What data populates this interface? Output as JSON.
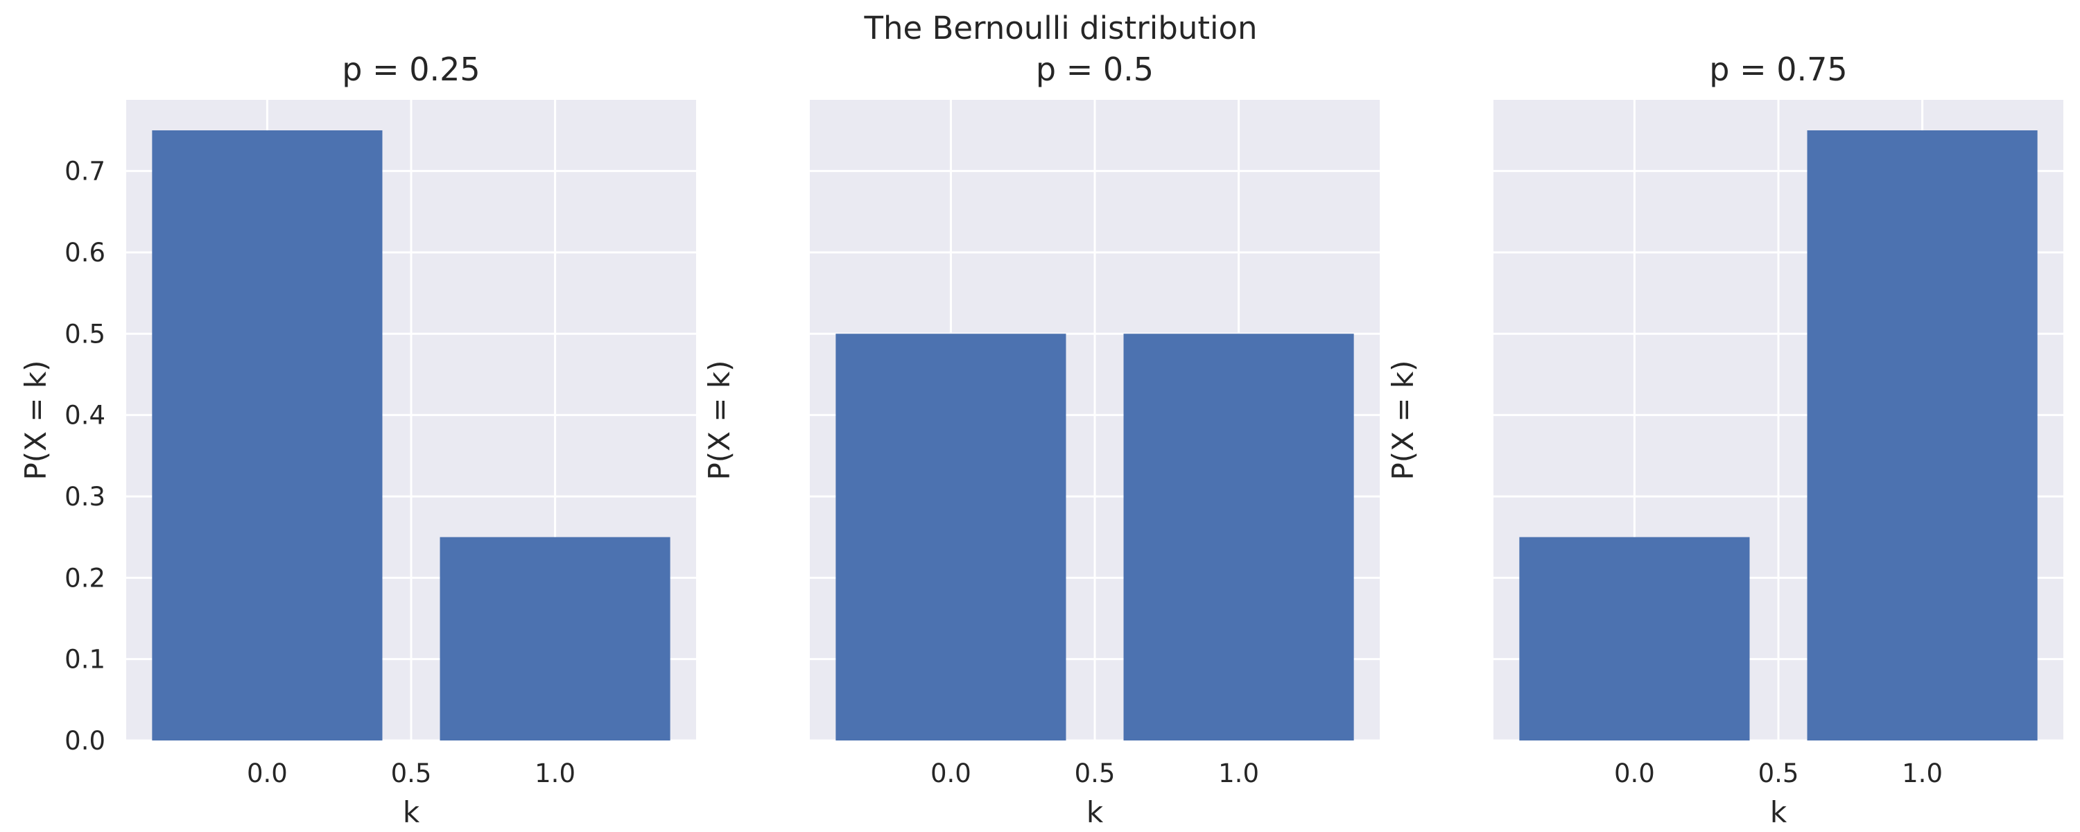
{
  "figure": {
    "title": "The Bernoulli distribution",
    "bar_color": "#4c72b0",
    "background_color": "#eaeaf2",
    "grid_color": "#ffffff"
  },
  "chart_data": [
    {
      "type": "bar",
      "title": "p = 0.25",
      "xlabel": "k",
      "ylabel": "P(X = k)",
      "x": [
        0.0,
        1.0
      ],
      "values": [
        0.75,
        0.25
      ],
      "bar_width": 0.8,
      "xlim": [
        -0.49,
        1.49
      ],
      "ylim": [
        0,
        0.7875
      ],
      "xticks": [
        "0.0",
        "0.5",
        "1.0"
      ],
      "yticks": [
        "0.0",
        "0.1",
        "0.2",
        "0.3",
        "0.4",
        "0.5",
        "0.6",
        "0.7"
      ],
      "grid": true
    },
    {
      "type": "bar",
      "title": "p = 0.5",
      "xlabel": "k",
      "ylabel": "P(X = k)",
      "x": [
        0.0,
        1.0
      ],
      "values": [
        0.5,
        0.5
      ],
      "bar_width": 0.8,
      "xlim": [
        -0.49,
        1.49
      ],
      "ylim": [
        0,
        0.7875
      ],
      "xticks": [
        "0.0",
        "0.5",
        "1.0"
      ],
      "yticks": [],
      "grid": true
    },
    {
      "type": "bar",
      "title": "p = 0.75",
      "xlabel": "k",
      "ylabel": "P(X = k)",
      "x": [
        0.0,
        1.0
      ],
      "values": [
        0.25,
        0.75
      ],
      "bar_width": 0.8,
      "xlim": [
        -0.49,
        1.49
      ],
      "ylim": [
        0,
        0.7875
      ],
      "xticks": [
        "0.0",
        "0.5",
        "1.0"
      ],
      "yticks": [],
      "grid": true
    }
  ]
}
